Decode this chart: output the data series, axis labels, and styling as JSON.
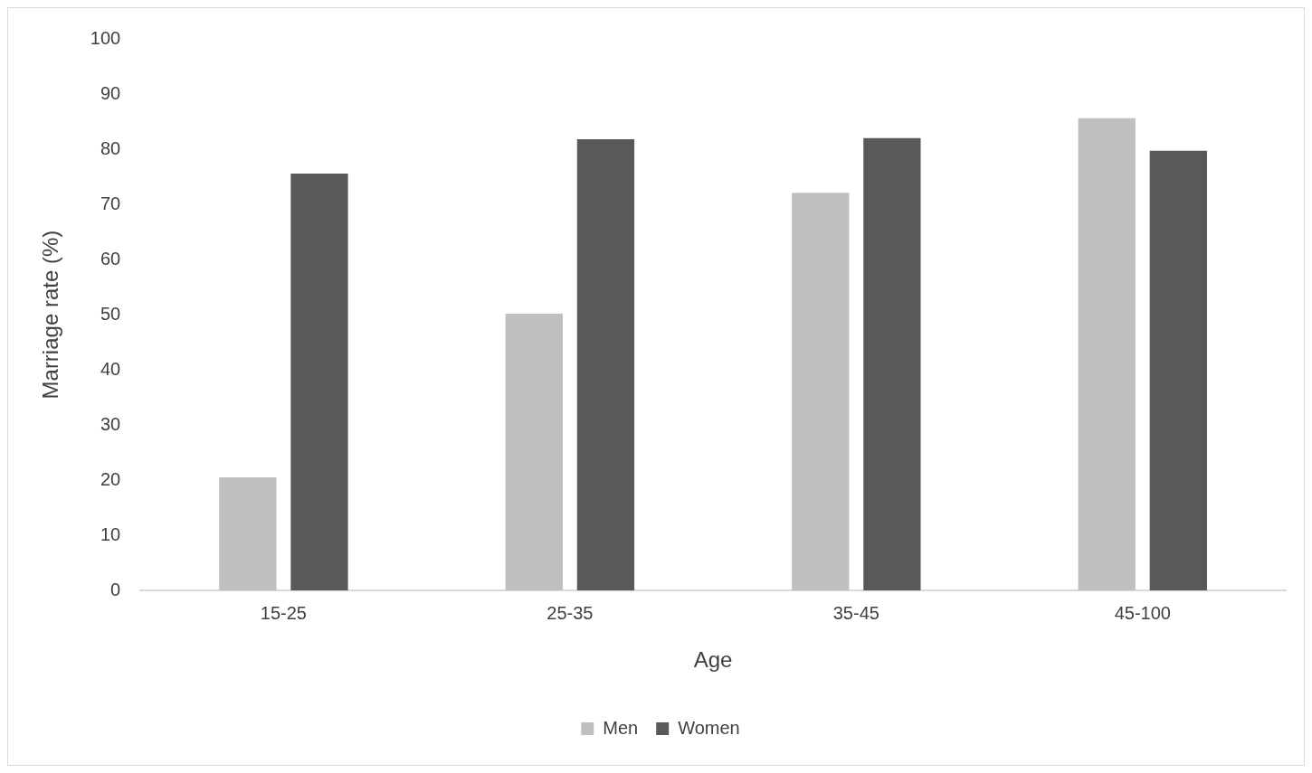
{
  "chart_data": {
    "type": "bar",
    "xlabel": "Age",
    "ylabel": "Marriage rate (%)",
    "categories": [
      "15-25",
      "25-35",
      "35-45",
      "45-100"
    ],
    "series": [
      {
        "name": "Men",
        "color": "#bfbfbf",
        "values": [
          20.5,
          50.2,
          72.1,
          85.6
        ]
      },
      {
        "name": "Women",
        "color": "#595959",
        "values": [
          75.6,
          81.8,
          82.0,
          79.7
        ]
      }
    ],
    "ylim": [
      0,
      100
    ],
    "yticks": [
      0,
      10,
      20,
      30,
      40,
      50,
      60,
      70,
      80,
      90,
      100
    ],
    "legend": "bottom"
  }
}
